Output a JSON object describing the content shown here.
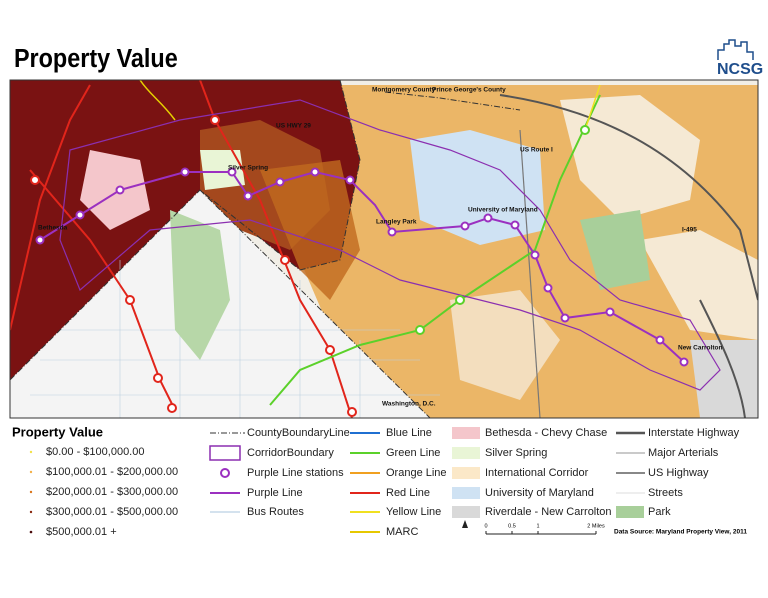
{
  "header": {
    "title": "Property Value",
    "logo": "NCSG"
  },
  "map": {
    "labels": [
      "Montgomery County",
      "Prince George's County",
      "US HWY 29",
      "US Route I",
      "Silver Spring",
      "Bethesda",
      "Langley Park",
      "University of Maryland",
      "I-495",
      "New Carrolton",
      "Washington, D.C."
    ]
  },
  "legend": {
    "title": "Property Value",
    "value_classes": [
      "$0.00 - $100,000.00",
      "$100,000.01 - $200,000.00",
      "$200,000.01 - $300,000.00",
      "$300,000.01 - $500,000.00",
      "$500,000.01 +"
    ],
    "features": [
      "CountyBoundaryLine",
      "CorridorBoundary",
      "Purple Line stations",
      "Purple Line",
      "Bus Routes"
    ],
    "transit": [
      "Blue Line",
      "Green Line",
      "Orange Line",
      "Red Line",
      "Yellow Line",
      "MARC"
    ],
    "areas": [
      "Bethesda - Chevy Chase",
      "Silver Spring",
      "International Corridor",
      "University of Maryland",
      "Riverdale - New Carrolton"
    ],
    "roads": [
      "Interstate Highway",
      "Major Arterials",
      "US Highway",
      "Streets",
      "Park"
    ]
  },
  "scale_bar": {
    "ticks": [
      "0",
      "0.5",
      "1",
      "2 Miles"
    ]
  },
  "source": "Data Source: Maryland Property View, 2011"
}
